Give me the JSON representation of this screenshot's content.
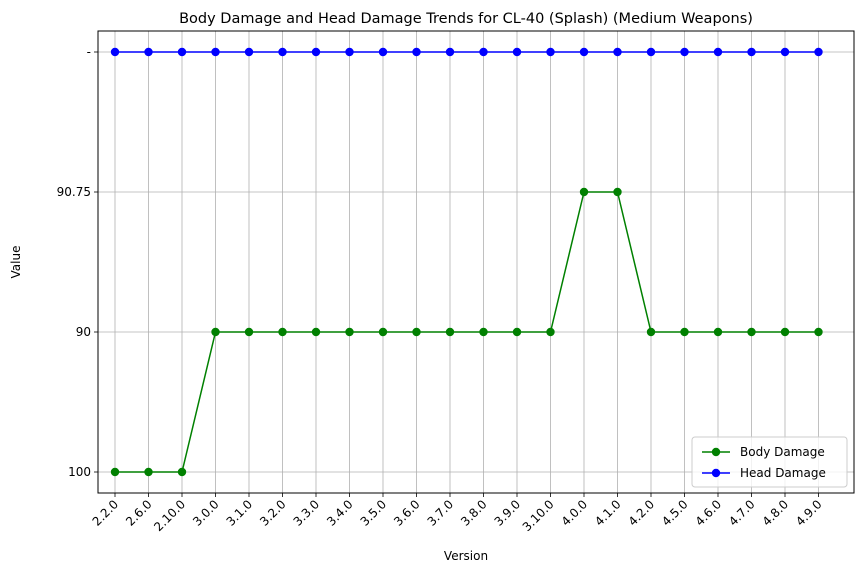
{
  "chart_data": {
    "type": "line",
    "title": "Body Damage and Head Damage Trends for CL-40 (Splash) (Medium Weapons)",
    "xlabel": "Version",
    "ylabel": "Value",
    "categories": [
      "2.2.0",
      "2.6.0",
      "2.10.0",
      "3.0.0",
      "3.1.0",
      "3.2.0",
      "3.3.0",
      "3.4.0",
      "3.5.0",
      "3.6.0",
      "3.7.0",
      "3.8.0",
      "3.9.0",
      "3.10.0",
      "4.0.0",
      "4.1.0",
      "4.2.0",
      "4.5.0",
      "4.6.0",
      "4.7.0",
      "4.8.0",
      "4.9.0"
    ],
    "y_categories": [
      "100",
      "90",
      "90.75",
      "-"
    ],
    "series": [
      {
        "name": "Body Damage",
        "color": "#008000",
        "values": [
          "100",
          "100",
          "100",
          "90",
          "90",
          "90",
          "90",
          "90",
          "90",
          "90",
          "90",
          "90",
          "90",
          "90",
          "90.75",
          "90.75",
          "90",
          "90",
          "90",
          "90",
          "90",
          "90"
        ]
      },
      {
        "name": "Head Damage",
        "color": "#0000ff",
        "values": [
          "-",
          "-",
          "-",
          "-",
          "-",
          "-",
          "-",
          "-",
          "-",
          "-",
          "-",
          "-",
          "-",
          "-",
          "-",
          "-",
          "-",
          "-",
          "-",
          "-",
          "-",
          "-"
        ]
      }
    ],
    "grid": true,
    "legend_position": "lower-right"
  }
}
